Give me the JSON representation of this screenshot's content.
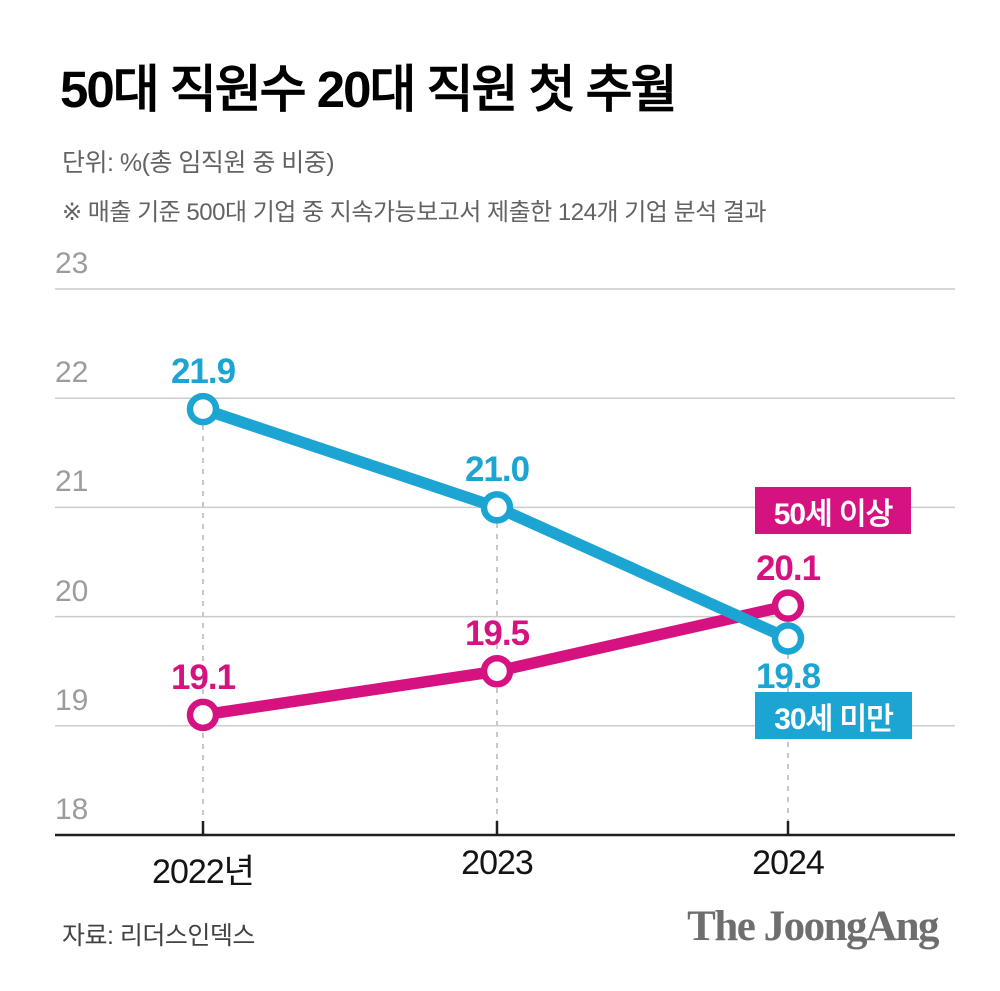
{
  "header": {
    "title": "50대 직원수 20대 직원 첫 추월",
    "unit_label": "단위: %(총 임직원 중 비중)",
    "note": "※ 매출 기준 500대 기업 중 지속가능보고서 제출한 124개 기업 분석 결과"
  },
  "chart_data": {
    "type": "line",
    "title": "50대 직원수 20대 직원 첫 추월",
    "unit": "%(총 임직원 중 비중)",
    "categories": [
      "2022년",
      "2023",
      "2024"
    ],
    "series": [
      {
        "name": "50세 이상",
        "color": "#D61280",
        "values": [
          19.1,
          19.5,
          20.1
        ],
        "labels": [
          "19.1",
          "19.5",
          "20.1"
        ]
      },
      {
        "name": "30세 미만",
        "color": "#1CA5D3",
        "values": [
          21.9,
          21.0,
          19.8
        ],
        "labels": [
          "21.9",
          "21.0",
          "19.8"
        ]
      }
    ],
    "ylim": [
      18,
      23
    ],
    "yticks": [
      18,
      19,
      20,
      21,
      22,
      23
    ],
    "grid": "horizontal",
    "legend_position": "inline-badges-right",
    "point_style": "open-circle"
  },
  "footer": {
    "source": "자료: 리더스인덱스",
    "logo": "The JoongAng"
  }
}
